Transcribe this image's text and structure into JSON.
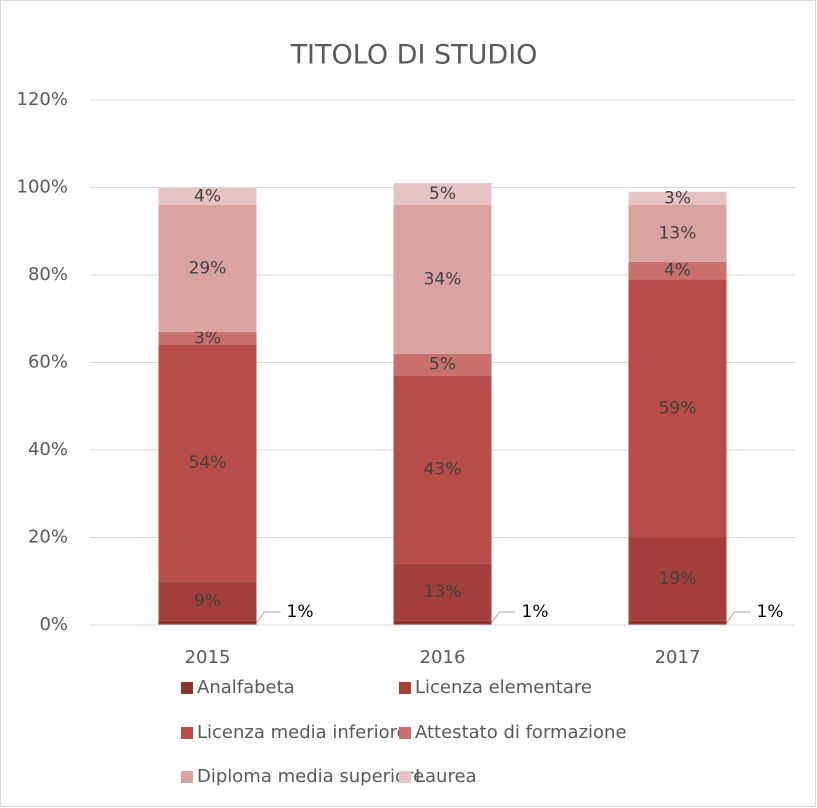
{
  "chart_data": {
    "type": "stacked_bar",
    "title": "TITOLO DI STUDIO",
    "categories": [
      "2015",
      "2016",
      "2017"
    ],
    "series": [
      {
        "name": "Analfabeta",
        "color": "#8e3230",
        "values": [
          1,
          1,
          1
        ],
        "value_labels": [
          "1%",
          "1%",
          "1%"
        ]
      },
      {
        "name": "Licenza elementare",
        "color": "#a3403d",
        "values": [
          9,
          13,
          19
        ],
        "value_labels": [
          "9%",
          "13%",
          "19%"
        ]
      },
      {
        "name": "Licenza media inferiore",
        "color": "#b84c48",
        "values": [
          54,
          43,
          59
        ],
        "value_labels": [
          "54%",
          "43%",
          "59%"
        ]
      },
      {
        "name": "Attestato di formazione",
        "color": "#c8706d",
        "values": [
          3,
          5,
          4
        ],
        "value_labels": [
          "3%",
          "5%",
          "4%"
        ]
      },
      {
        "name": "Diploma media superiore",
        "color": "#d9a3a2",
        "values": [
          29,
          34,
          13
        ],
        "value_labels": [
          "29%",
          "34%",
          "13%"
        ]
      },
      {
        "name": "Laurea",
        "color": "#e7c4c4",
        "values": [
          4,
          5,
          3
        ],
        "value_labels": [
          "4%",
          "5%",
          "3%"
        ]
      }
    ],
    "ylim": [
      0,
      120
    ],
    "yticks": [
      {
        "value": 0,
        "label": "0%"
      },
      {
        "value": 20,
        "label": "20%"
      },
      {
        "value": 40,
        "label": "40%"
      },
      {
        "value": 60,
        "label": "60%"
      },
      {
        "value": 80,
        "label": "80%"
      },
      {
        "value": 100,
        "label": "100%"
      },
      {
        "value": 120,
        "label": "120%"
      }
    ],
    "grid": true
  }
}
